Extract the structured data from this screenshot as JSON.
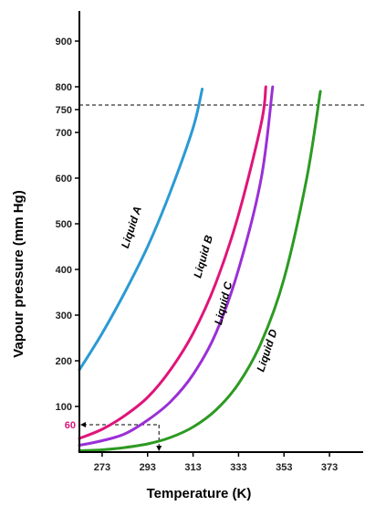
{
  "chart_data": {
    "type": "line",
    "title": "",
    "xlabel": "Temperature (K)",
    "ylabel": "Vapour pressure (mm Hg)",
    "xlim": [
      263,
      385
    ],
    "ylim": [
      0,
      950
    ],
    "x_ticks": [
      273,
      293,
      313,
      333,
      353,
      373
    ],
    "y_ticks": [
      100,
      200,
      300,
      400,
      500,
      600,
      700,
      750,
      800,
      900
    ],
    "reference_line": {
      "y": 760,
      "style": "dashed"
    },
    "annotation": {
      "label": "60",
      "x": 298,
      "y": 60
    },
    "series": [
      {
        "name": "Liquid A",
        "color": "#2a9ad4",
        "x": [
          263,
          273,
          283,
          293,
          303,
          313,
          317
        ],
        "y": [
          180,
          260,
          350,
          450,
          570,
          710,
          795
        ]
      },
      {
        "name": "Liquid B",
        "color": "#e0147a",
        "x": [
          263,
          273,
          283,
          293,
          303,
          313,
          323,
          333,
          343,
          345
        ],
        "y": [
          30,
          50,
          80,
          120,
          180,
          260,
          370,
          520,
          720,
          800
        ]
      },
      {
        "name": "Liquid C",
        "color": "#9b2fd6",
        "x": [
          263,
          273,
          283,
          293,
          303,
          313,
          323,
          333,
          343,
          348
        ],
        "y": [
          15,
          25,
          40,
          70,
          110,
          170,
          260,
          400,
          600,
          800
        ]
      },
      {
        "name": "Liquid D",
        "color": "#2d9a22",
        "x": [
          263,
          273,
          283,
          293,
          303,
          313,
          323,
          333,
          343,
          353,
          363,
          369
        ],
        "y": [
          3,
          5,
          10,
          18,
          32,
          55,
          92,
          150,
          240,
          380,
          600,
          790
        ]
      }
    ]
  }
}
